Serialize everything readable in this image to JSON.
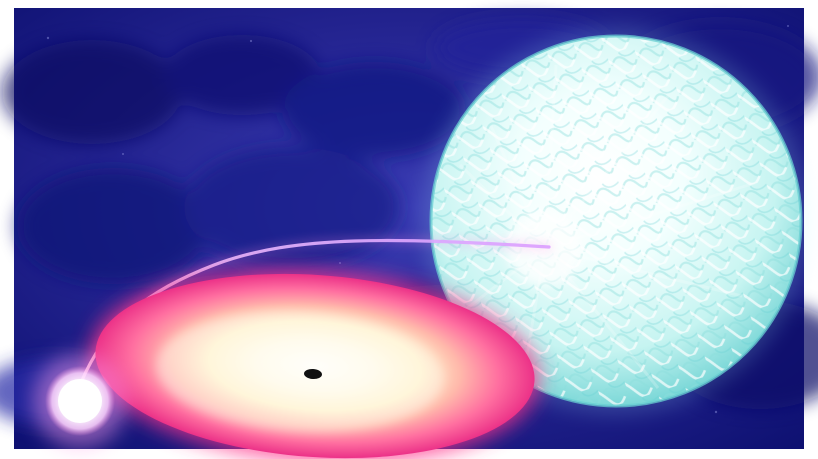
{
  "colors": {
    "background": "#ffffff",
    "space_deep": "#10106a",
    "space_mid": "#2a2ca2",
    "companion_star": "#dff7f6",
    "companion_star_rim": "#8ee3e1",
    "accretion_disk_outer": "#ff3f8f",
    "accretion_disk_middle": "#ff8fa1",
    "accretion_disk_inner": "#fff5d8",
    "hot_spot": "#ffffff",
    "stream": "#f3c9ff",
    "black_hole": "#111111"
  },
  "icons": {
    "companion_star": "star-icon",
    "black_hole": "black-hole-icon"
  }
}
